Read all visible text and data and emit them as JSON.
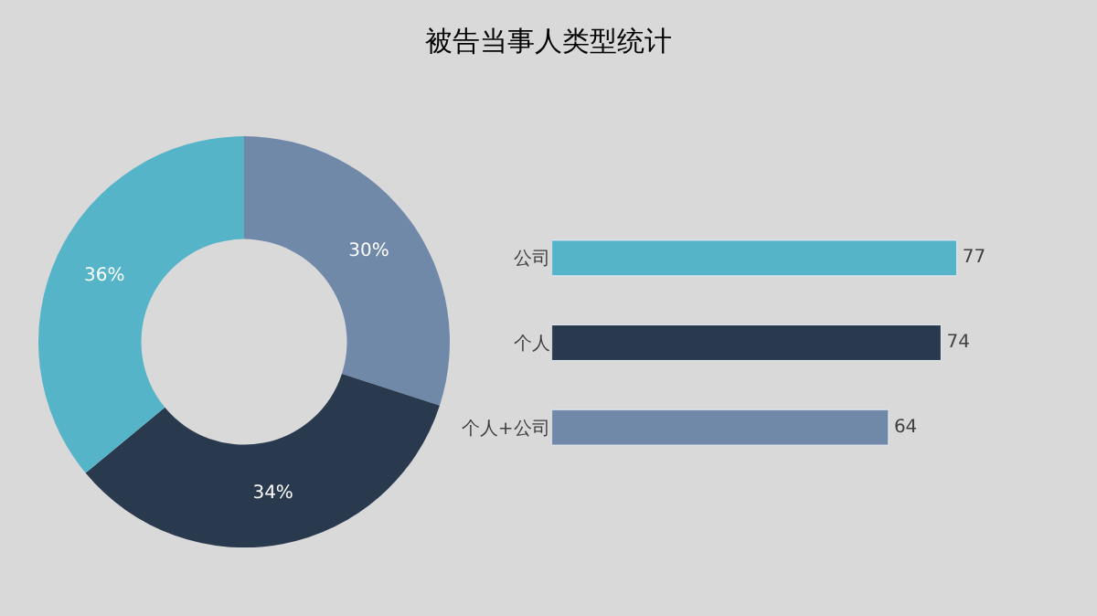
{
  "chart_data": [
    {
      "type": "donut",
      "title": "被告当事人类型统计",
      "categories": [
        null,
        null,
        null
      ],
      "values": [
        30,
        34,
        36
      ],
      "colors": [
        "#7189a8",
        "#2a3a4e",
        "#56b4c8"
      ],
      "value_labels": [
        "30%",
        "34%",
        "36%"
      ]
    },
    {
      "type": "bar",
      "orientation": "horizontal",
      "categories": [
        "公司",
        "个人",
        "个人+公司"
      ],
      "values": [
        77,
        74,
        64
      ],
      "colors": [
        "#56b4c8",
        "#2a3a4e",
        "#7189a8"
      ],
      "tick_labels": "y",
      "data_labels": true
    }
  ]
}
